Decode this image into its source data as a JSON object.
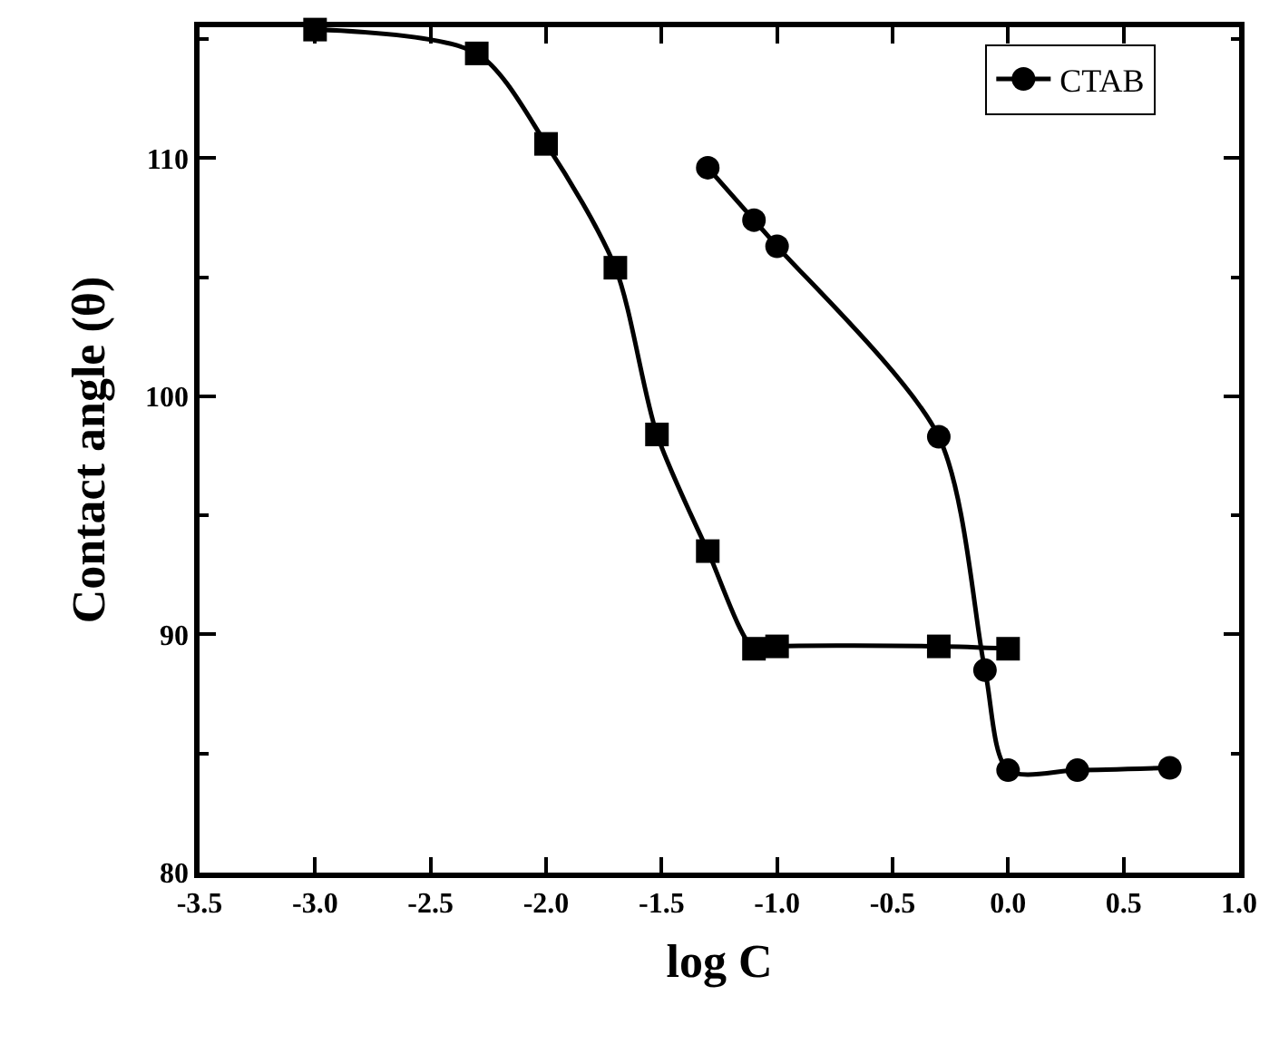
{
  "chart_data": {
    "type": "line",
    "xlabel": "log C",
    "ylabel": "Contact angle (θ)",
    "xlim": [
      -3.5,
      1.0
    ],
    "xticks": [
      {
        "value": -3.5,
        "label": "-3.5"
      },
      {
        "value": -3.0,
        "label": "-3.0"
      },
      {
        "value": -2.5,
        "label": "-2.5"
      },
      {
        "value": -2.0,
        "label": "-2.0"
      },
      {
        "value": -1.5,
        "label": "-1.5"
      },
      {
        "value": -1.0,
        "label": "-1.0"
      },
      {
        "value": -0.5,
        "label": "-0.5"
      },
      {
        "value": 0.0,
        "label": "0.0"
      },
      {
        "value": 0.5,
        "label": "0.5"
      },
      {
        "value": 1.0,
        "label": "1.0"
      }
    ],
    "ylim": [
      80,
      115.5
    ],
    "yticks": [
      80,
      90,
      100,
      110
    ],
    "legend": "top right",
    "line_style": "solid",
    "series": [
      {
        "color": "#000000",
        "marker": "square",
        "x": [
          -3.0,
          -2.3,
          -2.0,
          -1.7,
          -1.52,
          -1.3,
          -1.1,
          -1.0,
          -0.3,
          0.0
        ],
        "values": [
          115.4,
          114.4,
          110.6,
          105.4,
          98.4,
          93.5,
          89.4,
          89.5,
          89.5,
          89.4
        ]
      },
      {
        "name": "CTAB",
        "color": "#000000",
        "marker": "circle",
        "x": [
          -1.3,
          -1.1,
          -1.0,
          -0.3,
          -0.1,
          0.0,
          0.3,
          0.7
        ],
        "values": [
          109.6,
          107.4,
          106.3,
          98.3,
          88.5,
          84.3,
          84.3,
          84.4
        ]
      }
    ]
  }
}
